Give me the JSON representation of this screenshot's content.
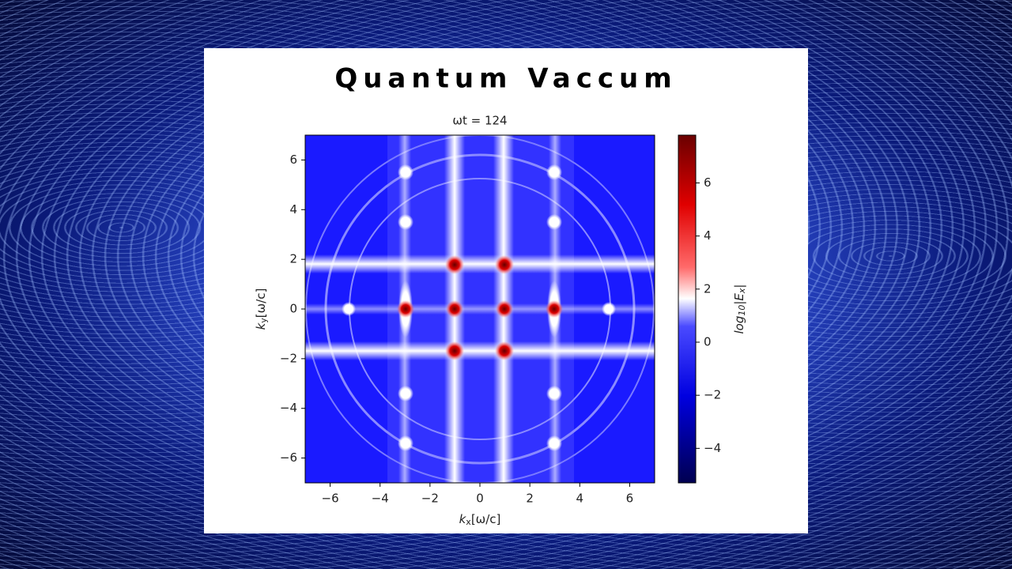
{
  "title": "Quantum Vaccum",
  "chart_data": {
    "type": "heatmap",
    "title": "ωt = 124",
    "xlabel": [
      "k",
      "x",
      "[ω/c]"
    ],
    "ylabel": [
      "k",
      "y",
      "[ω/c]"
    ],
    "xlim": [
      -7,
      7
    ],
    "ylim": [
      -7,
      7
    ],
    "xticks": [
      {
        "value": -6,
        "label": "−6"
      },
      {
        "value": -4,
        "label": "−4"
      },
      {
        "value": -2,
        "label": "−2"
      },
      0,
      2,
      4,
      6
    ],
    "yticks": [
      {
        "value": -6,
        "label": "−6"
      },
      {
        "value": -4,
        "label": "−4"
      },
      {
        "value": -2,
        "label": "−2"
      },
      0,
      2,
      4,
      6
    ],
    "colorbar": {
      "label": [
        "log",
        "10",
        "|E",
        "x",
        "|"
      ],
      "lim": [
        -5.3,
        7.8
      ],
      "ticks": [
        {
          "value": -4,
          "label": "−4"
        },
        {
          "value": -2,
          "label": "−2"
        },
        0,
        2,
        4,
        6
      ]
    }
  }
}
